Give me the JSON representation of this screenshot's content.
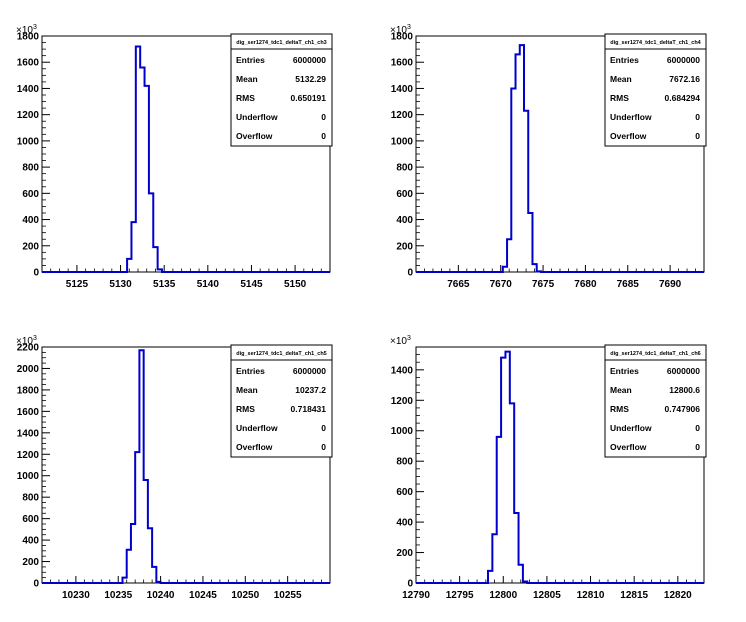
{
  "chart_data": [
    {
      "type": "histogram",
      "hist_name": "dig_ser1274_tdc1_deltaT_ch1_ch3",
      "x_range": [
        5121.0,
        5154.0
      ],
      "x_ticks": [
        5125,
        5130,
        5135,
        5140,
        5145,
        5150
      ],
      "y_range": [
        0,
        1800
      ],
      "y_ticks": [
        0,
        200,
        400,
        600,
        800,
        1000,
        1200,
        1400,
        1600,
        1800
      ],
      "y_multiplier_base": "10",
      "y_multiplier_exp": "3",
      "bins": [
        {
          "lo": 5130.25,
          "hi": 5130.75,
          "y": 0
        },
        {
          "lo": 5130.75,
          "hi": 5131.25,
          "y": 100
        },
        {
          "lo": 5131.25,
          "hi": 5131.75,
          "y": 380
        },
        {
          "lo": 5131.75,
          "hi": 5132.25,
          "y": 1720
        },
        {
          "lo": 5132.25,
          "hi": 5132.75,
          "y": 1560
        },
        {
          "lo": 5132.75,
          "hi": 5133.25,
          "y": 1420
        },
        {
          "lo": 5133.25,
          "hi": 5133.75,
          "y": 600
        },
        {
          "lo": 5133.75,
          "hi": 5134.25,
          "y": 190
        },
        {
          "lo": 5134.25,
          "hi": 5134.75,
          "y": 20
        },
        {
          "lo": 5134.75,
          "hi": 5135.25,
          "y": 0
        }
      ],
      "line_color": "#0000cc",
      "stats": [
        {
          "label": "Entries",
          "value": "6000000"
        },
        {
          "label": "Mean",
          "value": "5132.29"
        },
        {
          "label": "RMS",
          "value": "0.650191"
        },
        {
          "label": "Underflow",
          "value": "0"
        },
        {
          "label": "Overflow",
          "value": "0"
        }
      ]
    },
    {
      "type": "histogram",
      "hist_name": "dig_ser1274_tdc1_deltaT_ch1_ch4",
      "x_range": [
        7660.0,
        7694.0
      ],
      "x_ticks": [
        7665,
        7670,
        7675,
        7680,
        7685,
        7690
      ],
      "y_range": [
        0,
        1800
      ],
      "y_ticks": [
        0,
        200,
        400,
        600,
        800,
        1000,
        1200,
        1400,
        1600,
        1800
      ],
      "y_multiplier_base": "10",
      "y_multiplier_exp": "3",
      "bins": [
        {
          "lo": 7669.75,
          "hi": 7670.25,
          "y": 0
        },
        {
          "lo": 7670.25,
          "hi": 7670.75,
          "y": 40
        },
        {
          "lo": 7670.75,
          "hi": 7671.25,
          "y": 250
        },
        {
          "lo": 7671.25,
          "hi": 7671.75,
          "y": 1400
        },
        {
          "lo": 7671.75,
          "hi": 7672.25,
          "y": 1660
        },
        {
          "lo": 7672.25,
          "hi": 7672.75,
          "y": 1730
        },
        {
          "lo": 7672.75,
          "hi": 7673.25,
          "y": 1230
        },
        {
          "lo": 7673.25,
          "hi": 7673.75,
          "y": 450
        },
        {
          "lo": 7673.75,
          "hi": 7674.25,
          "y": 60
        },
        {
          "lo": 7674.25,
          "hi": 7674.75,
          "y": 5
        },
        {
          "lo": 7674.75,
          "hi": 7675.25,
          "y": 0
        }
      ],
      "line_color": "#0000cc",
      "stats": [
        {
          "label": "Entries",
          "value": "6000000"
        },
        {
          "label": "Mean",
          "value": "7672.16"
        },
        {
          "label": "RMS",
          "value": "0.684294"
        },
        {
          "label": "Underflow",
          "value": "0"
        },
        {
          "label": "Overflow",
          "value": "0"
        }
      ]
    },
    {
      "type": "histogram",
      "hist_name": "dig_ser1274_tdc1_deltaT_ch1_ch5",
      "x_range": [
        10226.0,
        10260.0
      ],
      "x_ticks": [
        10230,
        10235,
        10240,
        10245,
        10250,
        10255
      ],
      "y_range": [
        0,
        2200
      ],
      "y_ticks": [
        0,
        200,
        400,
        600,
        800,
        1000,
        1200,
        1400,
        1600,
        1800,
        2000,
        2200
      ],
      "y_multiplier_base": "10",
      "y_multiplier_exp": "3",
      "bins": [
        {
          "lo": 10235.0,
          "hi": 10235.5,
          "y": 0
        },
        {
          "lo": 10235.5,
          "hi": 10236.0,
          "y": 50
        },
        {
          "lo": 10236.0,
          "hi": 10236.5,
          "y": 310
        },
        {
          "lo": 10236.5,
          "hi": 10237.0,
          "y": 550
        },
        {
          "lo": 10237.0,
          "hi": 10237.5,
          "y": 1220
        },
        {
          "lo": 10237.5,
          "hi": 10238.0,
          "y": 2170
        },
        {
          "lo": 10238.0,
          "hi": 10238.5,
          "y": 960
        },
        {
          "lo": 10238.5,
          "hi": 10239.0,
          "y": 510
        },
        {
          "lo": 10239.0,
          "hi": 10239.5,
          "y": 150
        },
        {
          "lo": 10239.5,
          "hi": 10240.0,
          "y": 10
        },
        {
          "lo": 10240.0,
          "hi": 10240.5,
          "y": 0
        }
      ],
      "line_color": "#0000cc",
      "stats": [
        {
          "label": "Entries",
          "value": "6000000"
        },
        {
          "label": "Mean",
          "value": "10237.2"
        },
        {
          "label": "RMS",
          "value": "0.718431"
        },
        {
          "label": "Underflow",
          "value": "0"
        },
        {
          "label": "Overflow",
          "value": "0"
        }
      ]
    },
    {
      "type": "histogram",
      "hist_name": "dig_ser1274_tdc1_deltaT_ch1_ch6",
      "x_range": [
        12790.0,
        12823.0
      ],
      "x_ticks": [
        12790,
        12795,
        12800,
        12805,
        12810,
        12815,
        12820
      ],
      "y_range": [
        0,
        1550
      ],
      "y_ticks": [
        0,
        200,
        400,
        600,
        800,
        1000,
        1200,
        1400
      ],
      "y_multiplier_base": "10",
      "y_multiplier_exp": "3",
      "bins": [
        {
          "lo": 12797.75,
          "hi": 12798.25,
          "y": 0
        },
        {
          "lo": 12798.25,
          "hi": 12798.75,
          "y": 80
        },
        {
          "lo": 12798.75,
          "hi": 12799.25,
          "y": 320
        },
        {
          "lo": 12799.25,
          "hi": 12799.75,
          "y": 960
        },
        {
          "lo": 12799.75,
          "hi": 12800.25,
          "y": 1480
        },
        {
          "lo": 12800.25,
          "hi": 12800.75,
          "y": 1520
        },
        {
          "lo": 12800.75,
          "hi": 12801.25,
          "y": 1180
        },
        {
          "lo": 12801.25,
          "hi": 12801.75,
          "y": 460
        },
        {
          "lo": 12801.75,
          "hi": 12802.25,
          "y": 120
        },
        {
          "lo": 12802.25,
          "hi": 12802.75,
          "y": 10
        },
        {
          "lo": 12802.75,
          "hi": 12803.25,
          "y": 0
        }
      ],
      "line_color": "#0000cc",
      "stats": [
        {
          "label": "Entries",
          "value": "6000000"
        },
        {
          "label": "Mean",
          "value": "12800.6"
        },
        {
          "label": "RMS",
          "value": "0.747906"
        },
        {
          "label": "Underflow",
          "value": "0"
        },
        {
          "label": "Overflow",
          "value": "0"
        }
      ]
    }
  ]
}
